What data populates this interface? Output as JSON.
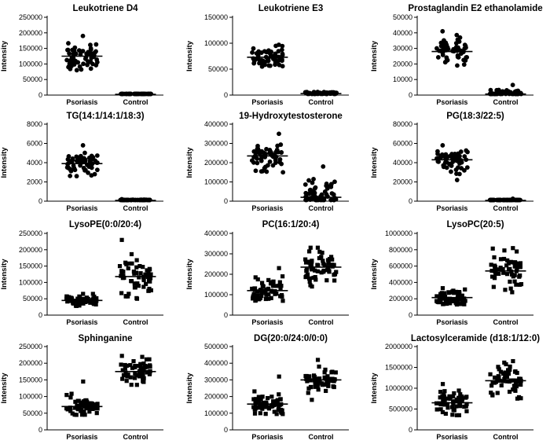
{
  "chart_data": [
    {
      "type": "scatter",
      "title": "Leukotriene D4",
      "ylabel": "Intensity",
      "categories": [
        "Psoriasis",
        "Control"
      ],
      "ylim": [
        0,
        250000
      ],
      "yticks": [
        0,
        50000,
        100000,
        150000,
        200000,
        250000
      ],
      "ytick_labels": [
        "0",
        "50000",
        "100000",
        "150000",
        "200000",
        "250000"
      ],
      "marker": "circle",
      "groups": [
        {
          "name": "Psoriasis",
          "mean": 125000,
          "sd": 20000,
          "min": 80000,
          "max": 190000
        },
        {
          "name": "Control",
          "mean": 1500,
          "sd": 500,
          "min": 500,
          "max": 3000
        }
      ]
    },
    {
      "type": "scatter",
      "title": "Leukotriene E3",
      "ylabel": "Intensity",
      "categories": [
        "Psoriasis",
        "Control"
      ],
      "ylim": [
        0,
        150000
      ],
      "yticks": [
        0,
        50000,
        100000,
        150000
      ],
      "ytick_labels": [
        "0",
        "50000",
        "100000",
        "150000"
      ],
      "marker": "circle",
      "groups": [
        {
          "name": "Psoriasis",
          "mean": 73000,
          "sd": 9000,
          "min": 55000,
          "max": 97000
        },
        {
          "name": "Control",
          "mean": 3000,
          "sd": 1200,
          "min": 1000,
          "max": 6000
        }
      ]
    },
    {
      "type": "scatter",
      "title": "Prostaglandin E2 ethanolamide",
      "ylabel": "Intensity",
      "categories": [
        "Psoriasis",
        "Control"
      ],
      "ylim": [
        0,
        50000
      ],
      "yticks": [
        0,
        10000,
        20000,
        30000,
        40000,
        50000
      ],
      "ytick_labels": [
        "0",
        "10000",
        "20000",
        "30000",
        "40000",
        "50000"
      ],
      "marker": "circle",
      "groups": [
        {
          "name": "Psoriasis",
          "mean": 28000,
          "sd": 4000,
          "min": 19000,
          "max": 41000
        },
        {
          "name": "Control",
          "mean": 700,
          "sd": 1200,
          "min": 0,
          "max": 6500
        }
      ]
    },
    {
      "type": "scatter",
      "title": "TG(14:1/14:1/18:3)",
      "ylabel": "Intensity",
      "categories": [
        "Psoriasis",
        "Control"
      ],
      "ylim": [
        0,
        8000
      ],
      "yticks": [
        0,
        2000,
        4000,
        6000,
        8000
      ],
      "ytick_labels": [
        "0",
        "2000",
        "4000",
        "6000",
        "8000"
      ],
      "marker": "circle",
      "groups": [
        {
          "name": "Psoriasis",
          "mean": 3900,
          "sd": 550,
          "min": 2600,
          "max": 5800
        },
        {
          "name": "Control",
          "mean": 80,
          "sd": 40,
          "min": 0,
          "max": 200
        }
      ]
    },
    {
      "type": "scatter",
      "title": "19-Hydroxytestosterone",
      "ylabel": "Intensity",
      "categories": [
        "Psoriasis",
        "Control"
      ],
      "ylim": [
        0,
        400000
      ],
      "yticks": [
        0,
        100000,
        200000,
        300000,
        400000
      ],
      "ytick_labels": [
        "0",
        "100000",
        "200000",
        "300000",
        "400000"
      ],
      "marker": "circle",
      "groups": [
        {
          "name": "Psoriasis",
          "mean": 235000,
          "sd": 35000,
          "min": 150000,
          "max": 350000
        },
        {
          "name": "Control",
          "mean": 20000,
          "sd": 40000,
          "min": 0,
          "max": 180000
        }
      ]
    },
    {
      "type": "scatter",
      "title": "PG(18:3/22:5)",
      "ylabel": "Intensity",
      "categories": [
        "Psoriasis",
        "Control"
      ],
      "ylim": [
        0,
        80000
      ],
      "yticks": [
        0,
        20000,
        40000,
        60000,
        80000
      ],
      "ytick_labels": [
        "0",
        "20000",
        "40000",
        "60000",
        "80000"
      ],
      "marker": "circle",
      "groups": [
        {
          "name": "Psoriasis",
          "mean": 43000,
          "sd": 7000,
          "min": 22000,
          "max": 58000
        },
        {
          "name": "Control",
          "mean": 500,
          "sd": 400,
          "min": 0,
          "max": 2500
        }
      ]
    },
    {
      "type": "scatter",
      "title": "LysoPE(0:0/20:4)",
      "ylabel": "Intensity",
      "categories": [
        "Psoriasis",
        "Control"
      ],
      "ylim": [
        0,
        250000
      ],
      "yticks": [
        0,
        50000,
        100000,
        150000,
        200000,
        250000
      ],
      "ytick_labels": [
        "0",
        "50000",
        "100000",
        "150000",
        "200000",
        "250000"
      ],
      "marker": "square",
      "groups": [
        {
          "name": "Psoriasis",
          "mean": 45000,
          "sd": 8000,
          "min": 28000,
          "max": 65000
        },
        {
          "name": "Control",
          "mean": 118000,
          "sd": 30000,
          "min": 50000,
          "max": 230000
        }
      ]
    },
    {
      "type": "scatter",
      "title": "PC(16:1/20:4)",
      "ylabel": "Intensity",
      "categories": [
        "Psoriasis",
        "Control"
      ],
      "ylim": [
        0,
        400000
      ],
      "yticks": [
        0,
        100000,
        200000,
        300000,
        400000
      ],
      "ytick_labels": [
        "0",
        "100000",
        "200000",
        "300000",
        "400000"
      ],
      "marker": "square",
      "groups": [
        {
          "name": "Psoriasis",
          "mean": 120000,
          "sd": 28000,
          "min": 70000,
          "max": 230000
        },
        {
          "name": "Control",
          "mean": 235000,
          "sd": 40000,
          "min": 140000,
          "max": 330000
        }
      ]
    },
    {
      "type": "scatter",
      "title": "LysoPC(20:5)",
      "ylabel": "Intensity",
      "categories": [
        "Psoriasis",
        "Control"
      ],
      "ylim": [
        0,
        1000000
      ],
      "yticks": [
        0,
        200000,
        400000,
        600000,
        800000,
        1000000
      ],
      "ytick_labels": [
        "0",
        "200000",
        "400000",
        "600000",
        "800000",
        "1000000"
      ],
      "marker": "square",
      "groups": [
        {
          "name": "Psoriasis",
          "mean": 215000,
          "sd": 45000,
          "min": 130000,
          "max": 330000
        },
        {
          "name": "Control",
          "mean": 540000,
          "sd": 110000,
          "min": 280000,
          "max": 820000
        }
      ]
    },
    {
      "type": "scatter",
      "title": "Sphinganine",
      "ylabel": "Intensity",
      "categories": [
        "Psoriasis",
        "Control"
      ],
      "ylim": [
        0,
        250000
      ],
      "yticks": [
        0,
        50000,
        100000,
        150000,
        200000,
        250000
      ],
      "ytick_labels": [
        "0",
        "50000",
        "100000",
        "150000",
        "200000",
        "250000"
      ],
      "marker": "square",
      "groups": [
        {
          "name": "Psoriasis",
          "mean": 70000,
          "sd": 17000,
          "min": 45000,
          "max": 145000
        },
        {
          "name": "Control",
          "mean": 175000,
          "sd": 20000,
          "min": 135000,
          "max": 222000
        }
      ]
    },
    {
      "type": "scatter",
      "title": "DG(20:0/24:0/0:0)",
      "ylabel": "Intensity",
      "categories": [
        "Psoriasis",
        "Control"
      ],
      "ylim": [
        0,
        500000
      ],
      "yticks": [
        0,
        100000,
        200000,
        300000,
        400000,
        500000
      ],
      "ytick_labels": [
        "0",
        "100000",
        "200000",
        "300000",
        "400000",
        "500000"
      ],
      "marker": "square",
      "groups": [
        {
          "name": "Psoriasis",
          "mean": 155000,
          "sd": 35000,
          "min": 95000,
          "max": 320000
        },
        {
          "name": "Control",
          "mean": 300000,
          "sd": 40000,
          "min": 180000,
          "max": 420000
        }
      ]
    },
    {
      "type": "scatter",
      "title": "Lactosylceramide (d18:1/12:0)",
      "ylabel": "Intensity",
      "categories": [
        "Psoriasis",
        "Control"
      ],
      "ylim": [
        0,
        2000000
      ],
      "yticks": [
        0,
        500000,
        1000000,
        1500000,
        2000000
      ],
      "ytick_labels": [
        "0",
        "500000",
        "1000000",
        "1500000",
        "2000000"
      ],
      "marker": "square",
      "groups": [
        {
          "name": "Psoriasis",
          "mean": 650000,
          "sd": 140000,
          "min": 350000,
          "max": 1100000
        },
        {
          "name": "Control",
          "mean": 1180000,
          "sd": 200000,
          "min": 750000,
          "max": 1650000
        }
      ]
    }
  ]
}
